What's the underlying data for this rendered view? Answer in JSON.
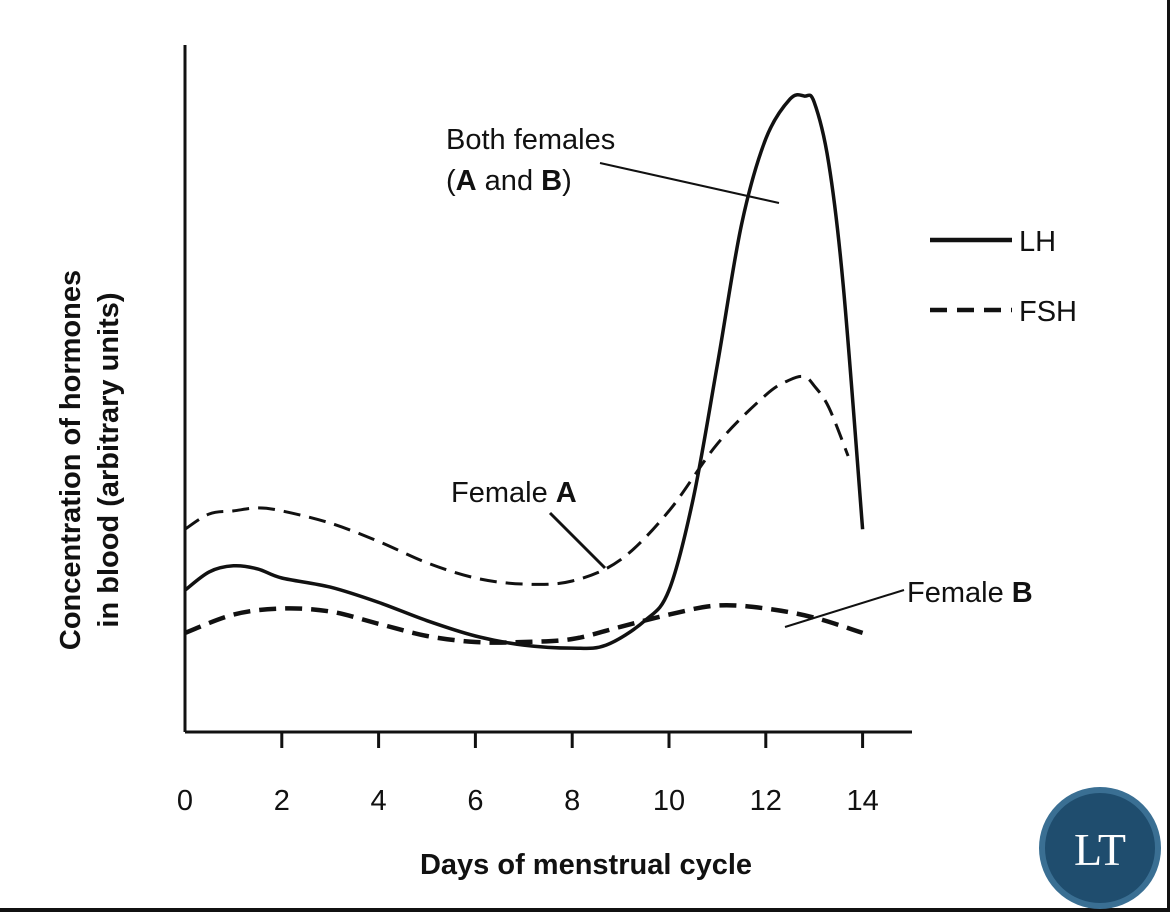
{
  "chart_data": {
    "type": "line",
    "xlabel": "Days of menstrual cycle",
    "ylabel": [
      "Concentration of hormones",
      "in blood (arbitrary units)"
    ],
    "xlim": [
      0,
      15
    ],
    "ylim": [
      0,
      100
    ],
    "xticks": [
      0,
      2,
      4,
      6,
      8,
      10,
      12,
      14
    ],
    "grid": false,
    "legend_position": "top-right",
    "legend": [
      {
        "label": "LH",
        "style": "solid"
      },
      {
        "label": "FSH",
        "style": "dashed"
      }
    ],
    "series": [
      {
        "name": "LH",
        "style": "solid",
        "stroke_width": 3.5,
        "x": [
          0,
          0.5,
          1,
          1.5,
          2,
          3,
          4,
          5,
          6,
          7,
          8,
          8.7,
          9.5,
          10,
          10.5,
          11,
          11.5,
          12,
          12.5,
          12.8,
          13,
          13.3,
          13.6,
          14
        ],
        "y": [
          18,
          21,
          22,
          21.5,
          20,
          18.5,
          16,
          13,
          10.5,
          9,
          8.5,
          9,
          13,
          18,
          33,
          55,
          78,
          92,
          98.5,
          99,
          98,
          88,
          68,
          28
        ]
      },
      {
        "name": "FSH",
        "style": "dashed",
        "stroke_width": 3,
        "x": [
          0,
          0.5,
          1,
          1.5,
          2,
          3,
          4,
          5,
          6,
          7,
          8,
          9,
          10,
          11,
          12,
          12.5,
          12.8,
          13,
          13.3,
          13.7
        ],
        "y": [
          28,
          30.5,
          31,
          31.5,
          31,
          29,
          26,
          22.5,
          20,
          19,
          19.5,
          23,
          31,
          42,
          50,
          52.5,
          53,
          51.5,
          48,
          40
        ]
      },
      {
        "name": "FSH",
        "style": "dashed",
        "stroke_width": 4.5,
        "x": [
          0,
          1,
          2,
          3,
          4,
          5,
          6,
          7,
          8,
          9,
          10,
          11,
          12,
          13,
          14
        ],
        "y": [
          11,
          14,
          15,
          14.5,
          12.5,
          10.5,
          9.5,
          9.5,
          10,
          12,
          14,
          15.5,
          15,
          13.5,
          11
        ]
      }
    ],
    "annotations": [
      {
        "text_parts": [
          "Both females"
        ],
        "line2_parts": [
          "(",
          "A",
          " and ",
          "B",
          ")"
        ],
        "points_to_series": 0
      },
      {
        "text_parts": [
          "Female ",
          "A"
        ],
        "points_to_series": 1
      },
      {
        "text_parts": [
          "Female ",
          "B"
        ],
        "points_to_series": 2
      }
    ]
  },
  "logo": {
    "text": "LT",
    "ring_color": "#3a6f93",
    "fill_color": "#1f4d6e"
  }
}
